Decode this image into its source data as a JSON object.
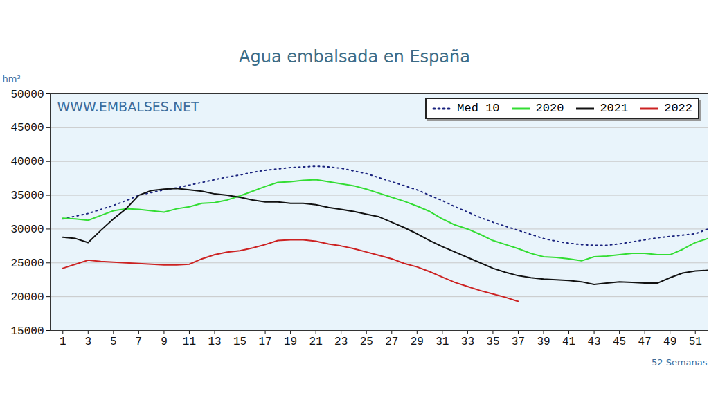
{
  "chart_data": {
    "type": "line",
    "title": "Agua embalsada en España",
    "y_label": "hm³",
    "x_label": "52 Semanas",
    "annotations": [
      "WWW.EMBALSES.NET"
    ],
    "x": [
      1,
      2,
      3,
      4,
      5,
      6,
      7,
      8,
      9,
      10,
      11,
      12,
      13,
      14,
      15,
      16,
      17,
      18,
      19,
      20,
      21,
      22,
      23,
      24,
      25,
      26,
      27,
      28,
      29,
      30,
      31,
      32,
      33,
      34,
      35,
      36,
      37,
      38,
      39,
      40,
      41,
      42,
      43,
      44,
      45,
      46,
      47,
      48,
      49,
      50,
      51,
      52
    ],
    "series": [
      {
        "name": "Med 10",
        "color": "#1a237e",
        "line_style": "dotted",
        "values": [
          31500,
          31900,
          32300,
          32900,
          33500,
          34200,
          35000,
          35400,
          35800,
          36100,
          36500,
          36900,
          37300,
          37700,
          38000,
          38400,
          38700,
          38900,
          39100,
          39200,
          39300,
          39200,
          39000,
          38600,
          38200,
          37600,
          37000,
          36400,
          35800,
          35000,
          34200,
          33300,
          32500,
          31700,
          31000,
          30400,
          29800,
          29200,
          28600,
          28200,
          27900,
          27700,
          27600,
          27600,
          27800,
          28100,
          28400,
          28700,
          28900,
          29100,
          29300,
          30000
        ]
      },
      {
        "name": "2020",
        "color": "#33dd33",
        "line_style": "solid",
        "values": [
          31600,
          31500,
          31300,
          32000,
          32700,
          33000,
          32900,
          32700,
          32500,
          33000,
          33300,
          33800,
          33900,
          34300,
          34900,
          35600,
          36300,
          36900,
          37000,
          37200,
          37300,
          37000,
          36700,
          36400,
          35900,
          35300,
          34700,
          34100,
          33400,
          32600,
          31500,
          30600,
          30000,
          29200,
          28300,
          27700,
          27100,
          26400,
          25900,
          25800,
          25600,
          25300,
          25900,
          26000,
          26200,
          26400,
          26400,
          26200,
          26200,
          27000,
          28000,
          28600
        ]
      },
      {
        "name": "2021",
        "color": "#111111",
        "line_style": "solid",
        "values": [
          28800,
          28600,
          28000,
          29800,
          31500,
          33000,
          35000,
          35700,
          35900,
          36000,
          35800,
          35600,
          35200,
          35000,
          34700,
          34300,
          34000,
          34000,
          33800,
          33800,
          33600,
          33200,
          32900,
          32600,
          32200,
          31800,
          31000,
          30200,
          29300,
          28300,
          27400,
          26600,
          25800,
          25000,
          24200,
          23600,
          23100,
          22800,
          22600,
          22500,
          22400,
          22200,
          21800,
          22000,
          22200,
          22100,
          22000,
          22000,
          22800,
          23500,
          23800,
          23900
        ]
      },
      {
        "name": "2022",
        "color": "#cc2222",
        "line_style": "solid",
        "values": [
          24200,
          24800,
          25400,
          25200,
          25100,
          25000,
          24900,
          24800,
          24700,
          24700,
          24800,
          25600,
          26200,
          26600,
          26800,
          27200,
          27700,
          28300,
          28400,
          28400,
          28200,
          27800,
          27500,
          27100,
          26600,
          26100,
          25600,
          24900,
          24400,
          23700,
          22900,
          22100,
          21500,
          20900,
          20400,
          19900,
          19300,
          null,
          null,
          null,
          null,
          null,
          null,
          null,
          null,
          null,
          null,
          null,
          null,
          null,
          null,
          null
        ]
      }
    ],
    "xlim": [
      0,
      52
    ],
    "xticks": [
      1,
      3,
      5,
      7,
      9,
      11,
      13,
      15,
      17,
      19,
      21,
      23,
      25,
      27,
      29,
      31,
      33,
      35,
      37,
      39,
      41,
      43,
      45,
      47,
      49,
      51
    ],
    "ylim": [
      15000,
      50000
    ],
    "yticks": [
      15000,
      20000,
      25000,
      30000,
      35000,
      40000,
      45000,
      50000
    ],
    "grid": true,
    "legend": "top-right"
  }
}
